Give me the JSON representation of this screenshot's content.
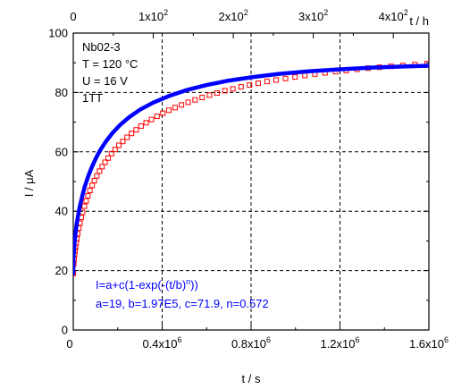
{
  "chart_data": {
    "type": "scatter",
    "xlabel": "t / s",
    "ylabel": "I / μA",
    "top_axis_label": "t / h",
    "xlim": [
      0,
      1600000
    ],
    "ylim": [
      0,
      100
    ],
    "top_xlim_hours": [
      0,
      444.444
    ],
    "grid": true,
    "x_ticks": [
      {
        "value": 0,
        "mantissa": "0",
        "exp": ""
      },
      {
        "value": 400000,
        "mantissa": "0.4x10",
        "exp": "6"
      },
      {
        "value": 800000,
        "mantissa": "0.8x10",
        "exp": "6"
      },
      {
        "value": 1200000,
        "mantissa": "1.2x10",
        "exp": "6"
      },
      {
        "value": 1600000,
        "mantissa": "1.6x10",
        "exp": "6"
      }
    ],
    "top_ticks": [
      {
        "value": 0,
        "mantissa": "0",
        "exp": ""
      },
      {
        "value": 100,
        "mantissa": "1x10",
        "exp": "2"
      },
      {
        "value": 200,
        "mantissa": "2x10",
        "exp": "2"
      },
      {
        "value": 300,
        "mantissa": "3x10",
        "exp": "2"
      },
      {
        "value": 400,
        "mantissa": "4x10",
        "exp": "2"
      }
    ],
    "y_ticks": [
      0,
      20,
      40,
      60,
      80,
      100
    ],
    "sample_info": [
      "Nb02-3",
      "T = 120 °C",
      "U = 16 V",
      "1TT"
    ],
    "fit": {
      "formula_parts": [
        "I=a+c(1-exp(-(t/b)",
        "n",
        "))"
      ],
      "params_text": "a=19, b=1.97E5, c=71.9, n=0.572",
      "a": 19,
      "b": 197000,
      "c": 71.9,
      "n": 0.572
    },
    "series": [
      {
        "kind": "measured",
        "marker": "open-square",
        "color": "#ff0000",
        "x": [
          0,
          2000,
          4000,
          6000,
          8000,
          10000,
          13000,
          16000,
          20000,
          25000,
          30000,
          36000,
          42000,
          50000,
          58000,
          66000,
          75000,
          85000,
          95000,
          106000,
          118000,
          130000,
          143000,
          157000,
          172000,
          188000,
          205000,
          223000,
          242000,
          262000,
          283000,
          305000,
          328000,
          352000,
          377000,
          403000,
          430000,
          458000,
          487000,
          517000,
          548000,
          580000,
          613000,
          647000,
          682000,
          718000,
          755000,
          793000,
          832000,
          872000,
          913000,
          955000,
          998000,
          1042000,
          1087000,
          1133000,
          1180000,
          1228000,
          1277000,
          1327000,
          1378000,
          1430000,
          1483000,
          1537000,
          1592000
        ],
        "y": [
          19,
          22.2,
          24.0,
          25.4,
          26.7,
          27.8,
          29.3,
          30.7,
          32.4,
          34.3,
          36.0,
          37.9,
          39.6,
          41.7,
          43.5,
          45.2,
          47.0,
          48.7,
          50.3,
          51.9,
          53.5,
          55.0,
          56.5,
          57.9,
          59.4,
          60.8,
          62.2,
          63.5,
          64.9,
          66.2,
          67.4,
          68.7,
          69.8,
          70.9,
          72.0,
          73.0,
          74.0,
          74.9,
          75.8,
          76.7,
          77.5,
          78.3,
          79.1,
          79.8,
          80.6,
          81.2,
          81.9,
          82.5,
          83.1,
          83.7,
          84.2,
          84.7,
          85.2,
          85.7,
          86.2,
          86.6,
          87.0,
          87.4,
          87.8,
          88.2,
          88.5,
          88.8,
          89.1,
          89.4,
          89.7
        ]
      },
      {
        "kind": "fit",
        "style": "thick-line",
        "color": "#0000ff",
        "x": [
          0,
          1000,
          3000,
          6000,
          10000,
          15000,
          22000,
          30000,
          40000,
          52000,
          66000,
          82000,
          100000,
          120000,
          145000,
          175000,
          210000,
          250000,
          300000,
          360000,
          430000,
          510000,
          600000,
          700000,
          810000,
          930000,
          1060000,
          1200000,
          1350000,
          1500000,
          1600000
        ],
        "y": [
          19,
          23.7,
          26.6,
          29.5,
          32.5,
          35.4,
          38.7,
          41.8,
          45.0,
          48.3,
          51.5,
          54.6,
          57.6,
          60.4,
          63.3,
          66.2,
          69.0,
          71.6,
          74.2,
          76.6,
          78.8,
          80.8,
          82.5,
          84.0,
          85.2,
          86.3,
          87.1,
          87.8,
          88.4,
          88.8,
          89.0
        ]
      }
    ]
  }
}
